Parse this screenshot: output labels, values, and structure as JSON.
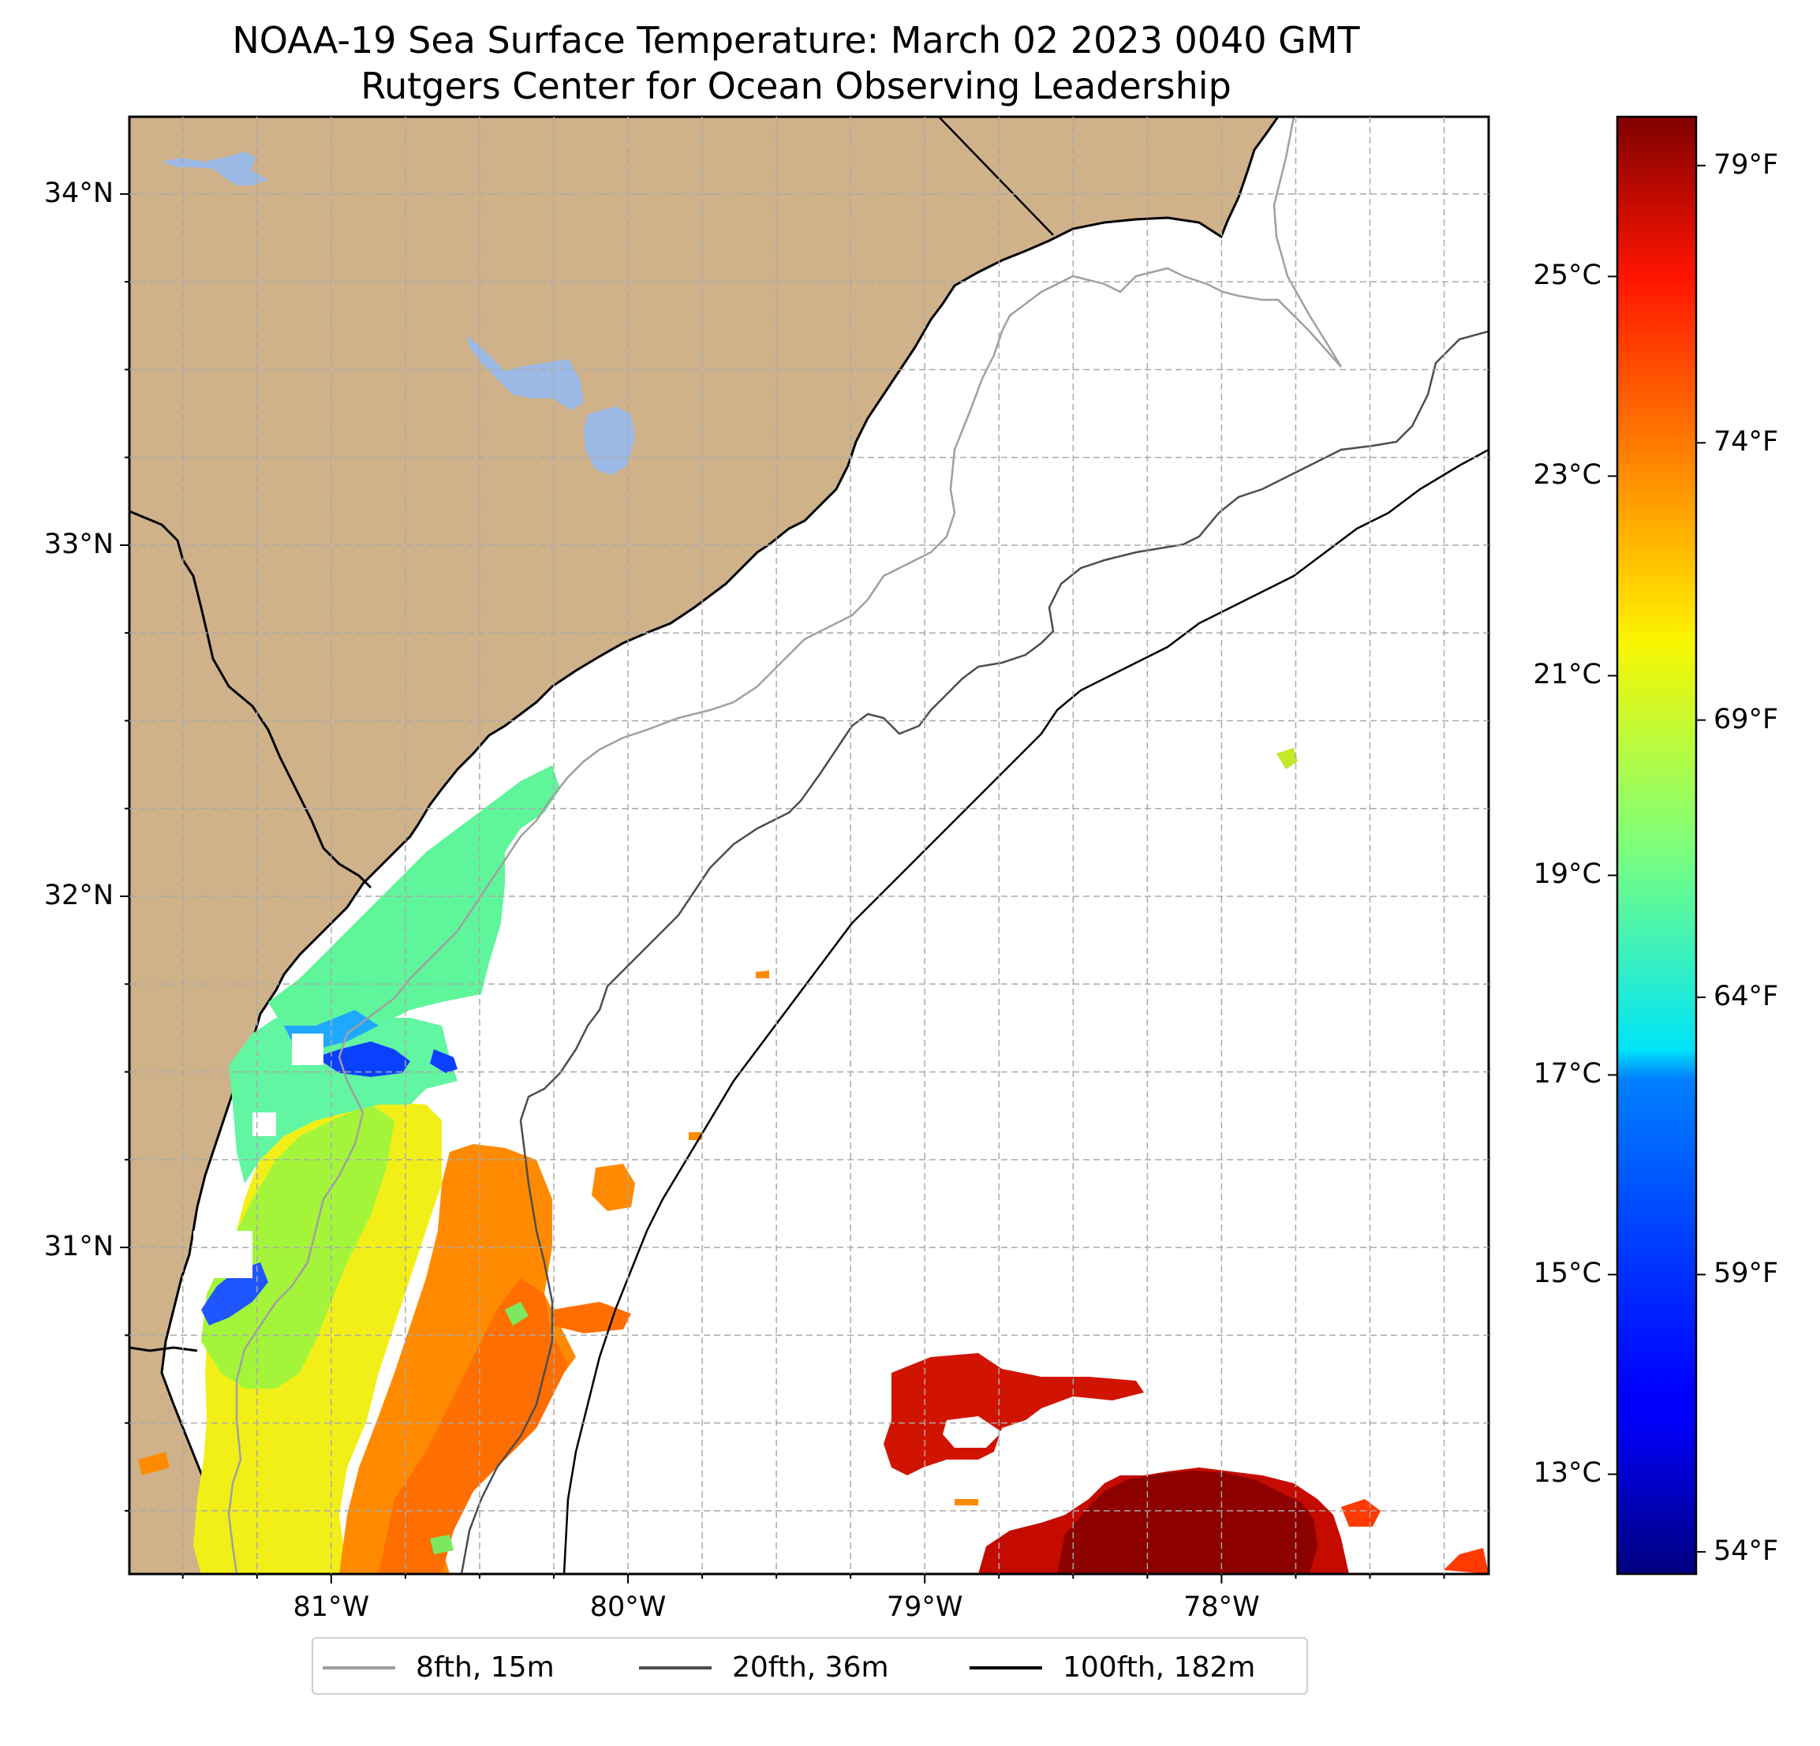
{
  "title": {
    "line1": "NOAA-19 Sea Surface Temperature: March 02 2023 0040 GMT",
    "line2": "Rutgers Center for Ocean Observing Leadership"
  },
  "map": {
    "lon_range": [
      -81.68,
      -77.1
    ],
    "lat_range": [
      30.07,
      34.22
    ],
    "lon_ticks": [
      {
        "value": -81,
        "label": "81°W"
      },
      {
        "value": -80,
        "label": "80°W"
      },
      {
        "value": -79,
        "label": "79°W"
      },
      {
        "value": -78,
        "label": "78°W"
      }
    ],
    "lat_ticks": [
      {
        "value": 34,
        "label": "34°N"
      },
      {
        "value": 33,
        "label": "33°N"
      },
      {
        "value": 32,
        "label": "32°N"
      },
      {
        "value": 31,
        "label": "31°N"
      }
    ],
    "gridlines": "dashed, every 0.25 degrees",
    "colors": {
      "land": "#cfb28a",
      "lakes": "#9bb9e4",
      "ocean": "#ffffff",
      "coastline": "#000000"
    }
  },
  "colorbar": {
    "colormap": "jet",
    "celsius_range": [
      12.0,
      26.6
    ],
    "celsius_ticks": [
      {
        "value": 13,
        "label": "13°C"
      },
      {
        "value": 15,
        "label": "15°C"
      },
      {
        "value": 17,
        "label": "17°C"
      },
      {
        "value": 19,
        "label": "19°C"
      },
      {
        "value": 21,
        "label": "21°C"
      },
      {
        "value": 23,
        "label": "23°C"
      },
      {
        "value": 25,
        "label": "25°C"
      }
    ],
    "fahrenheit_ticks": [
      {
        "value": 54,
        "label": "54°F"
      },
      {
        "value": 59,
        "label": "59°F"
      },
      {
        "value": 64,
        "label": "64°F"
      },
      {
        "value": 69,
        "label": "69°F"
      },
      {
        "value": 74,
        "label": "74°F"
      },
      {
        "value": 79,
        "label": "79°F"
      }
    ]
  },
  "legend": {
    "items": [
      {
        "label": "8fth, 15m",
        "color": "#a0a0a0"
      },
      {
        "label": "20fth, 36m",
        "color": "#4d4d4d"
      },
      {
        "label": "100fth, 182m",
        "color": "#000000"
      }
    ]
  }
}
